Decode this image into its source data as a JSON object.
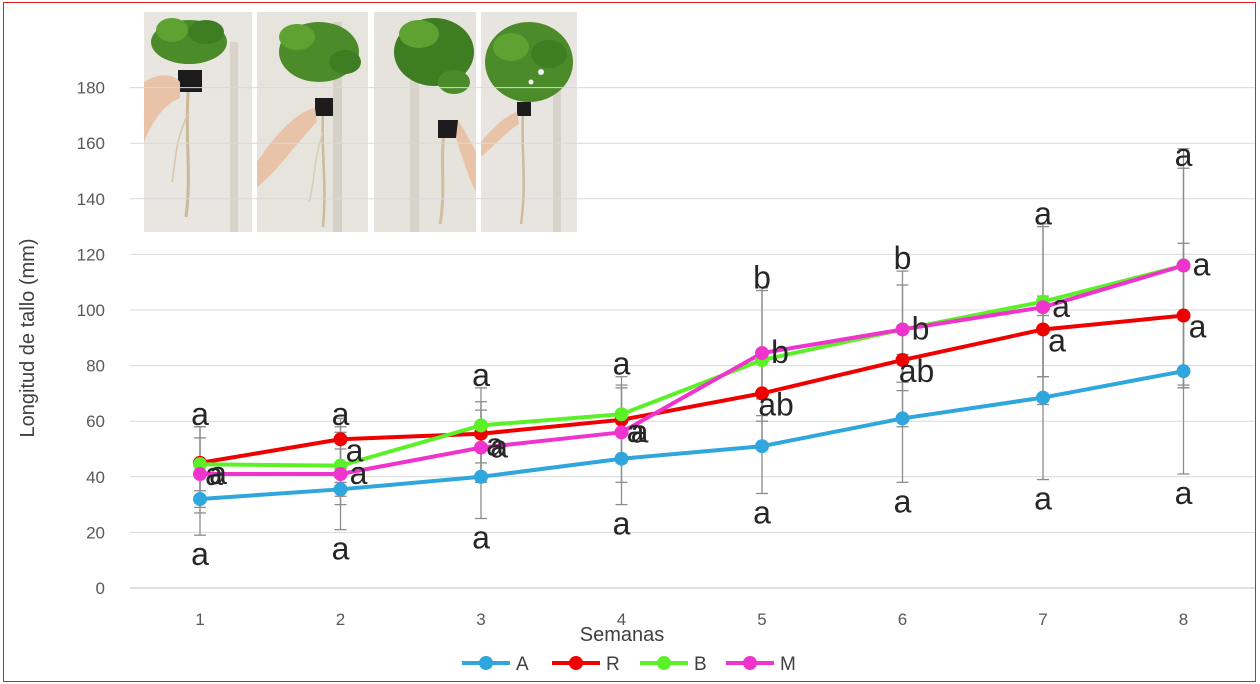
{
  "colors": {
    "A": "#2fa6dc",
    "R": "#ef0000",
    "B": "#5cf028",
    "M": "#ef33cd",
    "border": "#e02020",
    "grid": "#d9d9d9",
    "error_bar": "#8c8c8c"
  },
  "photos": [
    {
      "icon": "plant-photo-1"
    },
    {
      "icon": "plant-photo-2"
    },
    {
      "icon": "plant-photo-3"
    },
    {
      "icon": "plant-photo-4"
    }
  ],
  "chart_data": {
    "type": "line",
    "title": "",
    "xlabel": "Semanas",
    "ylabel": "Longitud de tallo (mm)",
    "x": [
      1,
      2,
      3,
      4,
      5,
      6,
      7,
      8
    ],
    "ylim": [
      0,
      200
    ],
    "yticks": [
      0,
      20,
      40,
      60,
      80,
      100,
      120,
      140,
      160,
      180
    ],
    "grid": true,
    "legend_position": "bottom",
    "series": [
      {
        "name": "A",
        "color": "#2fa6dc",
        "values": [
          32,
          35.5,
          40,
          46.5,
          51,
          61,
          68.5,
          78
        ],
        "err_low": [
          19,
          21,
          25,
          30,
          34,
          38,
          39,
          41
        ],
        "err_high": [
          44,
          50,
          55,
          63,
          68,
          84,
          98,
          115
        ],
        "labels": [
          "a",
          "a",
          "a",
          "a",
          "a",
          "a",
          "a",
          "a"
        ]
      },
      {
        "name": "R",
        "color": "#ef0000",
        "values": [
          45,
          53.5,
          55.5,
          60.5,
          70,
          82,
          93,
          98
        ],
        "err_low": [
          35,
          38,
          40,
          45,
          50,
          58,
          66,
          72
        ],
        "err_high": [
          58,
          61,
          64,
          72,
          82,
          92,
          105,
          124
        ],
        "labels": [
          "a",
          "a",
          "a",
          "a",
          "ab",
          "ab",
          "a",
          "a"
        ]
      },
      {
        "name": "B",
        "color": "#5cf028",
        "values": [
          44.5,
          44,
          58.5,
          62.5,
          82,
          93,
          103,
          116
        ],
        "err_low": [
          27,
          30,
          45,
          47,
          60,
          71,
          76,
          73
        ],
        "err_high": [
          58,
          58,
          72,
          76,
          107,
          114,
          130,
          151
        ],
        "labels": [
          "a",
          "a",
          "a",
          "a",
          "b",
          "b",
          "a",
          "a"
        ]
      },
      {
        "name": "M",
        "color": "#ef33cd",
        "values": [
          41,
          41,
          50.5,
          56,
          84.5,
          93,
          101,
          116
        ],
        "err_low": [
          29,
          33,
          38,
          38,
          62,
          74,
          76,
          72
        ],
        "err_high": [
          54,
          56,
          67,
          73,
          108,
          109,
          131,
          158
        ],
        "labels": [
          "a",
          "a",
          "a",
          "a",
          "b",
          "b",
          "a",
          "a"
        ]
      }
    ]
  }
}
